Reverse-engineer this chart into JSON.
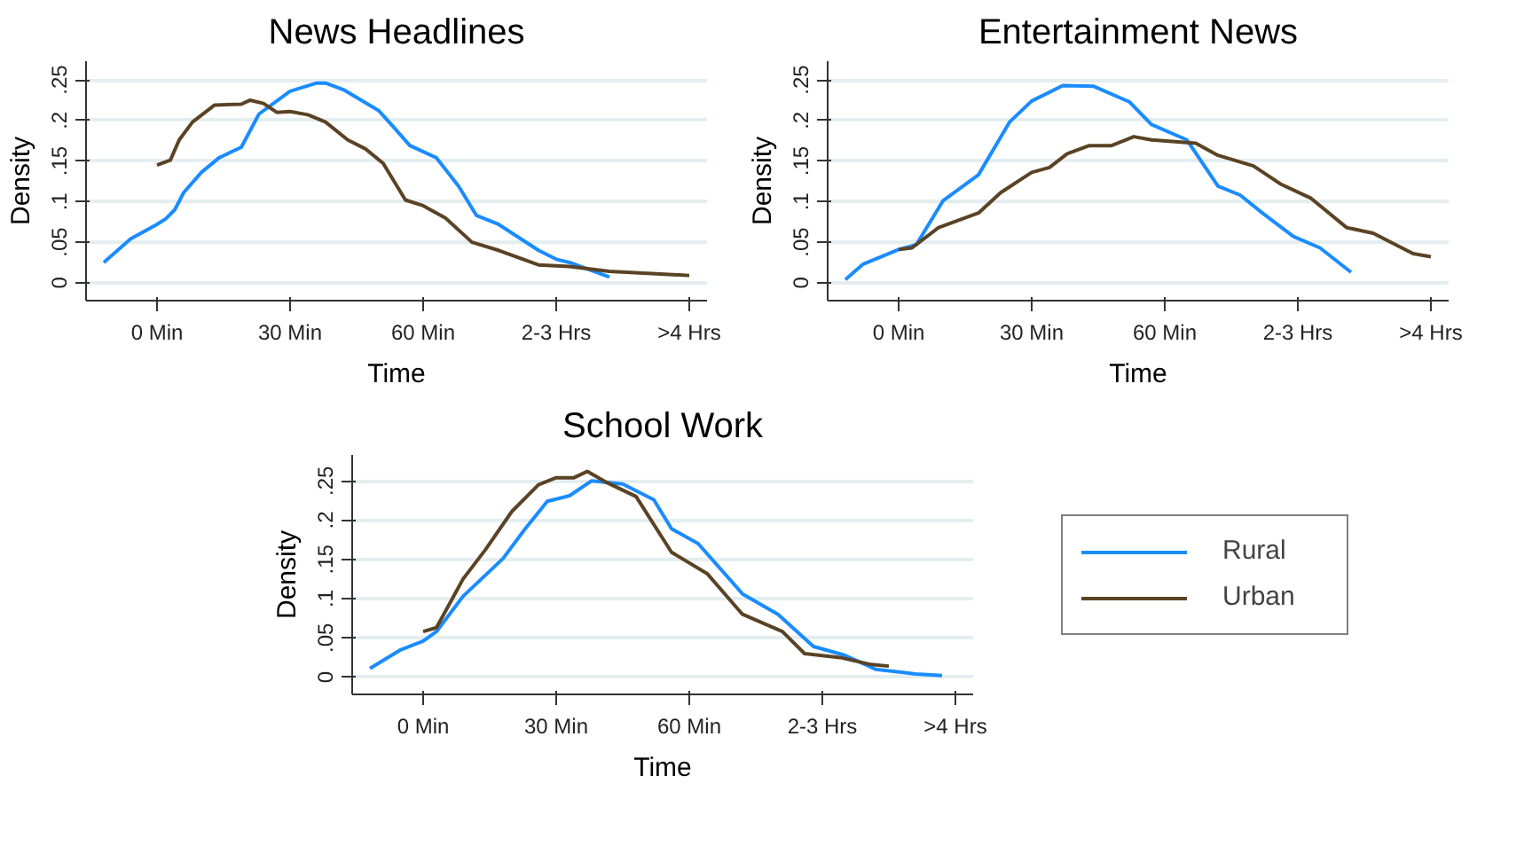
{
  "chart_data": [
    {
      "type": "line",
      "title": "News Headlines",
      "xlabel": "Time",
      "ylabel": "Density",
      "xlim": [
        -16,
        124
      ],
      "ylim": [
        -0.022,
        0.273
      ],
      "xticks": [
        {
          "value": 0,
          "label": "0 Min"
        },
        {
          "value": 30,
          "label": "30 Min"
        },
        {
          "value": 60,
          "label": "60 Min"
        },
        {
          "value": 90,
          "label": "2-3 Hrs"
        },
        {
          "value": 120,
          "label": ">4 Hrs"
        }
      ],
      "yticks": [
        {
          "value": 0,
          "label": "0"
        },
        {
          "value": 0.05,
          "label": ".05"
        },
        {
          "value": 0.1,
          "label": ".1"
        },
        {
          "value": 0.15,
          "label": ".15"
        },
        {
          "value": 0.2,
          "label": ".2"
        },
        {
          "value": 0.25,
          "label": ".25"
        }
      ],
      "grid": "y",
      "series": [
        {
          "color": "#1a8cff",
          "x": [
            -12,
            -6,
            0,
            2,
            4,
            6,
            10,
            14,
            19,
            23,
            30,
            36,
            38,
            42,
            50,
            53,
            57,
            63,
            68,
            72,
            77,
            86,
            90,
            93,
            102
          ],
          "values": [
            0.025,
            0.054,
            0.072,
            0.079,
            0.09,
            0.111,
            0.136,
            0.154,
            0.167,
            0.208,
            0.236,
            0.246,
            0.246,
            0.238,
            0.212,
            0.194,
            0.169,
            0.154,
            0.119,
            0.083,
            0.072,
            0.04,
            0.029,
            0.025,
            0.007
          ]
        },
        {
          "color": "#5a4324",
          "x": [
            0,
            3,
            5,
            8,
            13,
            19,
            21,
            24,
            27,
            30,
            34,
            38,
            43,
            47,
            51,
            56,
            60,
            65,
            71,
            77,
            86,
            93,
            102,
            120
          ],
          "values": [
            0.145,
            0.151,
            0.176,
            0.198,
            0.219,
            0.22,
            0.225,
            0.221,
            0.21,
            0.211,
            0.207,
            0.198,
            0.176,
            0.165,
            0.147,
            0.102,
            0.095,
            0.08,
            0.05,
            0.04,
            0.022,
            0.02,
            0.014,
            0.009
          ]
        }
      ]
    },
    {
      "type": "line",
      "title": "Entertainment News",
      "xlabel": "Time",
      "ylabel": "Density",
      "xlim": [
        -16,
        124
      ],
      "ylim": [
        -0.022,
        0.273
      ],
      "xticks": [
        {
          "value": 0,
          "label": "0 Min"
        },
        {
          "value": 30,
          "label": "30 Min"
        },
        {
          "value": 60,
          "label": "60 Min"
        },
        {
          "value": 90,
          "label": "2-3 Hrs"
        },
        {
          "value": 120,
          "label": ">4 Hrs"
        }
      ],
      "yticks": [
        {
          "value": 0,
          "label": "0"
        },
        {
          "value": 0.05,
          "label": ".05"
        },
        {
          "value": 0.1,
          "label": ".1"
        },
        {
          "value": 0.15,
          "label": ".15"
        },
        {
          "value": 0.2,
          "label": ".2"
        },
        {
          "value": 0.25,
          "label": ".25"
        }
      ],
      "grid": "y",
      "series": [
        {
          "color": "#1a8cff",
          "x": [
            -12,
            -8,
            0,
            4,
            10,
            18,
            25,
            30,
            37,
            44,
            52,
            57,
            65,
            72,
            77,
            82,
            89,
            95,
            102
          ],
          "values": [
            0.004,
            0.023,
            0.041,
            0.047,
            0.101,
            0.133,
            0.198,
            0.224,
            0.243,
            0.242,
            0.223,
            0.195,
            0.176,
            0.119,
            0.108,
            0.086,
            0.057,
            0.043,
            0.013
          ]
        },
        {
          "color": "#5a4324",
          "x": [
            0,
            3,
            9,
            18,
            23,
            30,
            34,
            38,
            43,
            48,
            53,
            57,
            67,
            72,
            80,
            86,
            93,
            101,
            107,
            116,
            120
          ],
          "values": [
            0.041,
            0.043,
            0.068,
            0.086,
            0.111,
            0.136,
            0.142,
            0.159,
            0.169,
            0.169,
            0.18,
            0.176,
            0.172,
            0.157,
            0.144,
            0.122,
            0.104,
            0.068,
            0.061,
            0.036,
            0.032
          ]
        }
      ]
    },
    {
      "type": "line",
      "title": "School Work",
      "xlabel": "Time",
      "ylabel": "Density",
      "xlim": [
        -16,
        124
      ],
      "ylim": [
        -0.022,
        0.283
      ],
      "xticks": [
        {
          "value": 0,
          "label": "0 Min"
        },
        {
          "value": 30,
          "label": "30 Min"
        },
        {
          "value": 60,
          "label": "60 Min"
        },
        {
          "value": 90,
          "label": "2-3 Hrs"
        },
        {
          "value": 120,
          "label": ">4 Hrs"
        }
      ],
      "yticks": [
        {
          "value": 0,
          "label": "0"
        },
        {
          "value": 0.05,
          "label": ".05"
        },
        {
          "value": 0.1,
          "label": ".1"
        },
        {
          "value": 0.15,
          "label": ".15"
        },
        {
          "value": 0.2,
          "label": ".2"
        },
        {
          "value": 0.25,
          "label": ".25"
        }
      ],
      "grid": "y",
      "legend": "right",
      "series": [
        {
          "name": "Rural",
          "color": "#1a8cff",
          "x": [
            -12,
            -5,
            0,
            3,
            9,
            18,
            23,
            28,
            33,
            38,
            45,
            52,
            56,
            62,
            72,
            80,
            88,
            95,
            102,
            111,
            117
          ],
          "values": [
            0.011,
            0.035,
            0.046,
            0.058,
            0.103,
            0.151,
            0.189,
            0.224,
            0.231,
            0.25,
            0.246,
            0.226,
            0.189,
            0.17,
            0.106,
            0.08,
            0.039,
            0.028,
            0.01,
            0.004,
            0.002
          ]
        },
        {
          "name": "Urban",
          "color": "#5a4324",
          "x": [
            0,
            3,
            9,
            14,
            20,
            26,
            30,
            34,
            37,
            41,
            48,
            56,
            64,
            72,
            81,
            86,
            94,
            101,
            105
          ],
          "values": [
            0.058,
            0.063,
            0.125,
            0.162,
            0.211,
            0.245,
            0.254,
            0.254,
            0.262,
            0.249,
            0.23,
            0.159,
            0.132,
            0.08,
            0.058,
            0.03,
            0.025,
            0.016,
            0.014
          ]
        }
      ]
    }
  ]
}
